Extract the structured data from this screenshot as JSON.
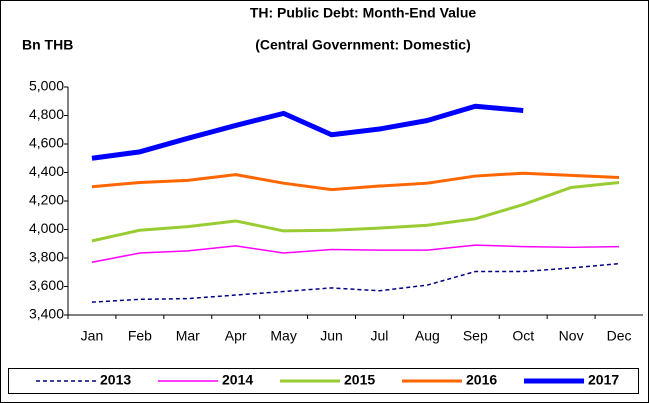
{
  "chart_data": {
    "type": "line",
    "title": [
      "TH: Public Debt: Month-End Value",
      "(Central Government: Domestic)"
    ],
    "y_label": "Bn THB",
    "categories": [
      "Jan",
      "Feb",
      "Mar",
      "Apr",
      "May",
      "Jun",
      "Jul",
      "Aug",
      "Sep",
      "Oct",
      "Nov",
      "Dec"
    ],
    "ylim": [
      3400,
      5000
    ],
    "yticks": [
      {
        "value": 3400,
        "label": "3,400"
      },
      {
        "value": 3600,
        "label": "3,600"
      },
      {
        "value": 3800,
        "label": "3,800"
      },
      {
        "value": 4000,
        "label": "4,000"
      },
      {
        "value": 4200,
        "label": "4,200"
      },
      {
        "value": 4400,
        "label": "4,400"
      },
      {
        "value": 4600,
        "label": "4,600"
      },
      {
        "value": 4800,
        "label": "4,800"
      },
      {
        "value": 5000,
        "label": "5,000"
      }
    ],
    "grid": false,
    "legend": "bottom",
    "series": [
      {
        "name": "2013",
        "color": "#000080",
        "width": 1.5,
        "dashed": true,
        "values": [
          3490,
          3510,
          3515,
          3540,
          3565,
          3590,
          3570,
          3610,
          3705,
          3705,
          3730,
          3760
        ]
      },
      {
        "name": "2014",
        "color": "#ff00ff",
        "width": 1.5,
        "dashed": false,
        "values": [
          3770,
          3835,
          3850,
          3885,
          3835,
          3860,
          3855,
          3855,
          3890,
          3880,
          3875,
          3880
        ]
      },
      {
        "name": "2015",
        "color": "#99cc33",
        "width": 3,
        "dashed": false,
        "values": [
          3920,
          3995,
          4020,
          4060,
          3990,
          3995,
          4010,
          4030,
          4075,
          4175,
          4295,
          4330
        ]
      },
      {
        "name": "2016",
        "color": "#ff6600",
        "width": 3,
        "dashed": false,
        "values": [
          4300,
          4330,
          4345,
          4385,
          4325,
          4280,
          4305,
          4325,
          4375,
          4395,
          4380,
          4365
        ]
      },
      {
        "name": "2017",
        "color": "#0000ff",
        "width": 5,
        "dashed": false,
        "values": [
          4500,
          4545,
          4640,
          4730,
          4815,
          4665,
          4705,
          4765,
          4865,
          4835,
          null,
          null
        ]
      }
    ]
  }
}
